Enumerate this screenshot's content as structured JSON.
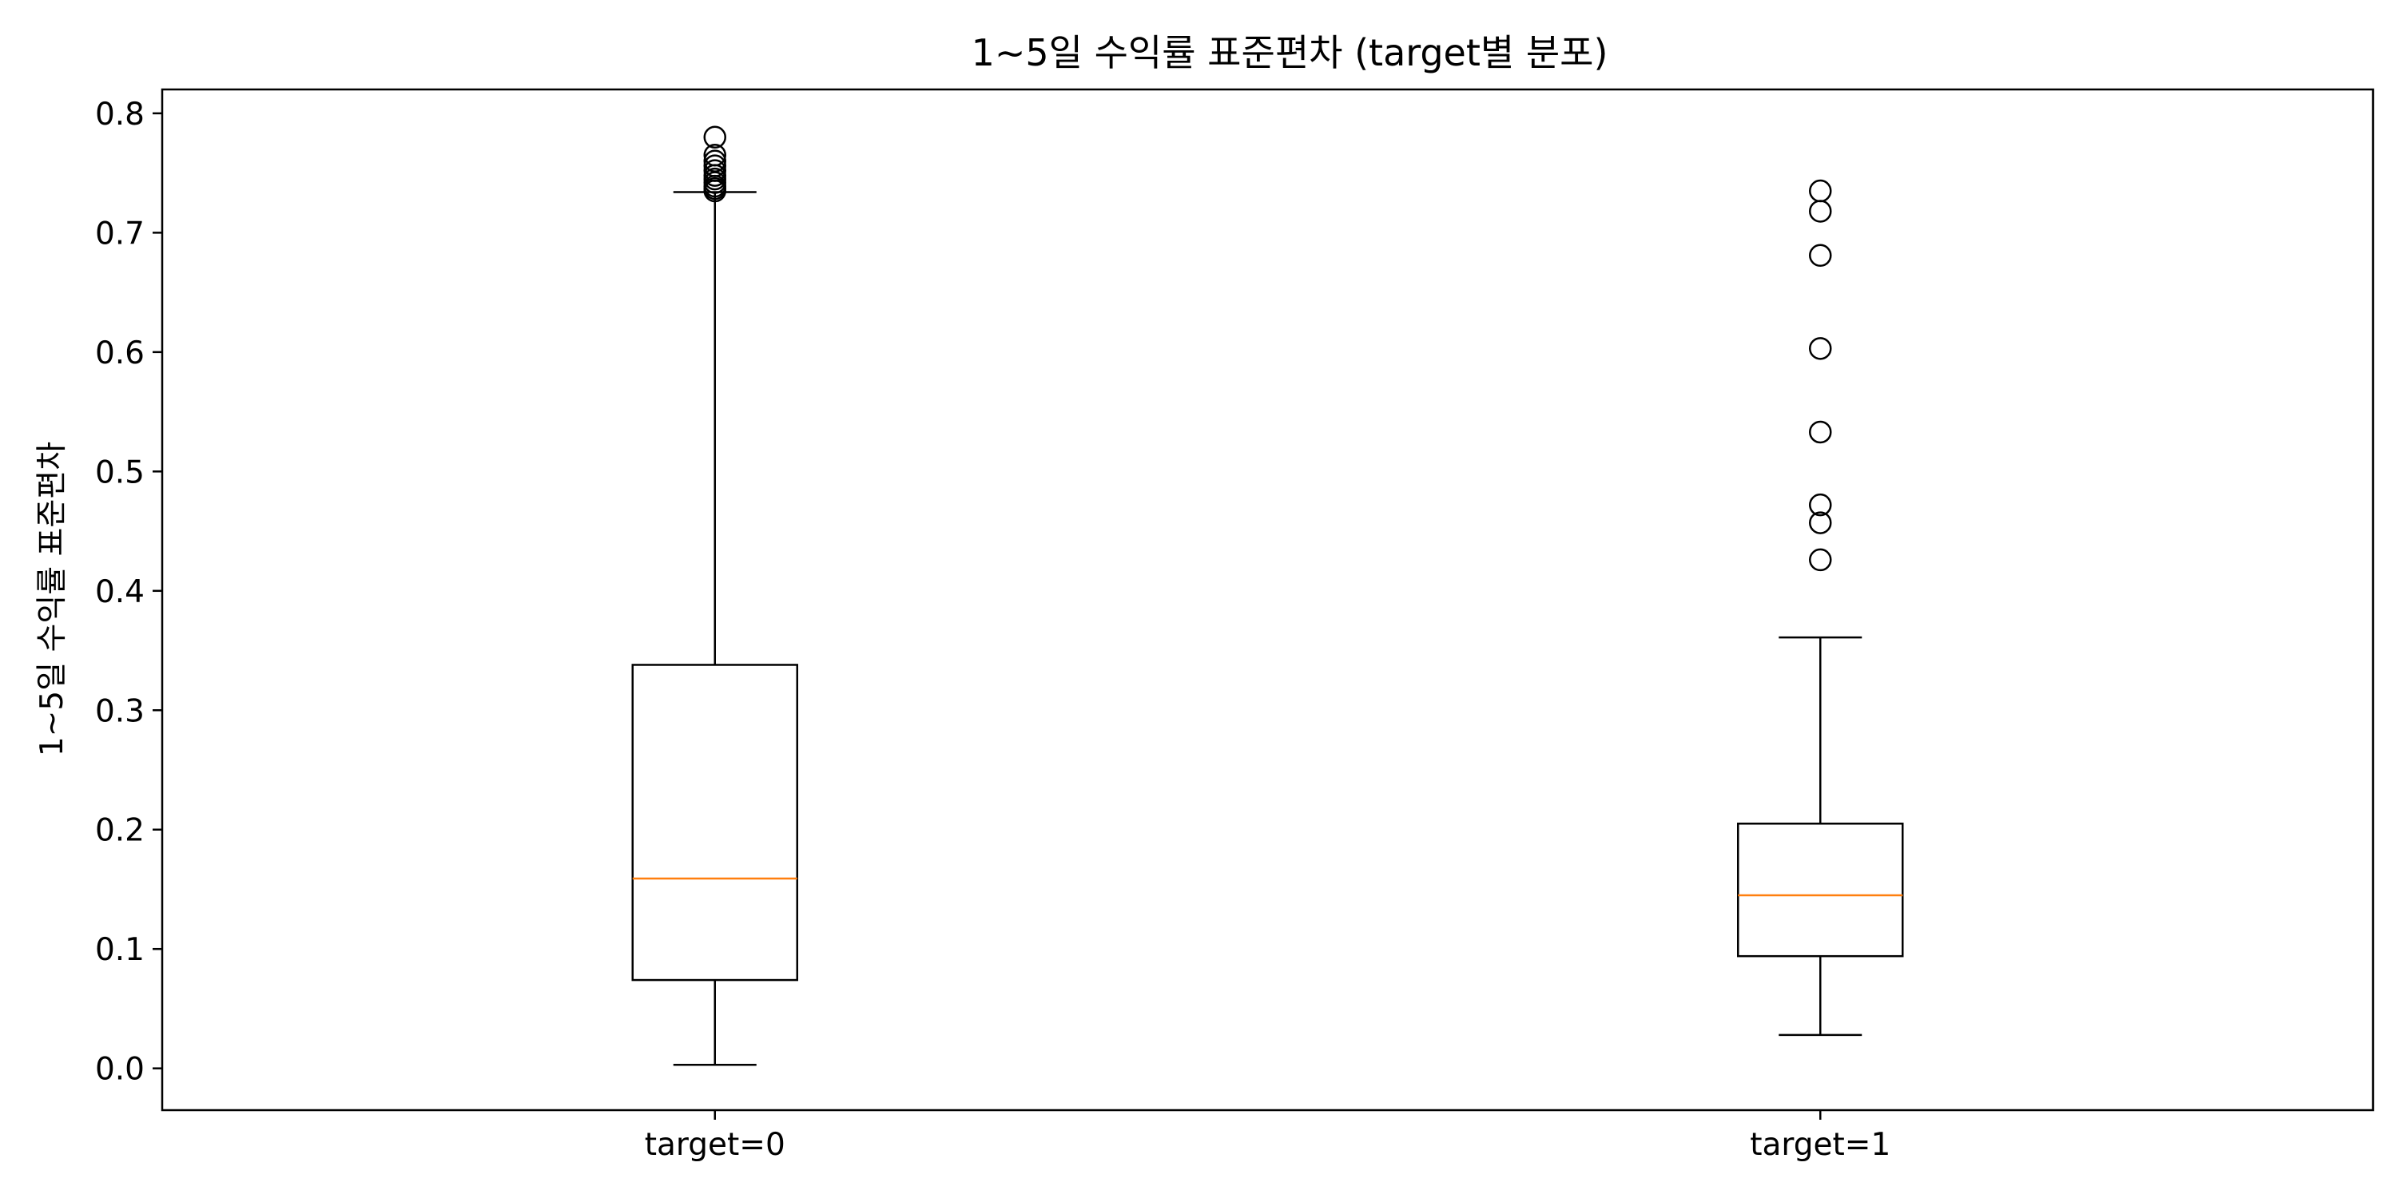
{
  "chart_data": {
    "type": "boxplot",
    "title": "1~5일 수익률 표준편차 (target별 분포)",
    "xlabel": "",
    "ylabel": "1~5일 수익률 표준편차",
    "categories": [
      "target=0",
      "target=1"
    ],
    "ylim": [
      -0.035,
      0.82
    ],
    "yticks": [
      0.0,
      0.1,
      0.2,
      0.3,
      0.4,
      0.5,
      0.6,
      0.7,
      0.8
    ],
    "ytick_labels": [
      "0.0",
      "0.1",
      "0.2",
      "0.3",
      "0.4",
      "0.5",
      "0.6",
      "0.7",
      "0.8"
    ],
    "grid": false,
    "legend": "none",
    "colors": {
      "box": "#000000",
      "median": "#ff7f0e",
      "outlier": "#000000",
      "background": "#ffffff"
    },
    "boxes": [
      {
        "category": "target=0",
        "whisker_low": 0.003,
        "q1": 0.074,
        "median": 0.159,
        "q3": 0.338,
        "whisker_high": 0.734,
        "outliers": [
          0.735,
          0.737,
          0.739,
          0.742,
          0.745,
          0.748,
          0.752,
          0.756,
          0.76,
          0.765,
          0.78
        ]
      },
      {
        "category": "target=1",
        "whisker_low": 0.028,
        "q1": 0.094,
        "median": 0.145,
        "q3": 0.205,
        "whisker_high": 0.361,
        "outliers": [
          0.426,
          0.457,
          0.472,
          0.533,
          0.603,
          0.681,
          0.718,
          0.735
        ]
      }
    ]
  }
}
